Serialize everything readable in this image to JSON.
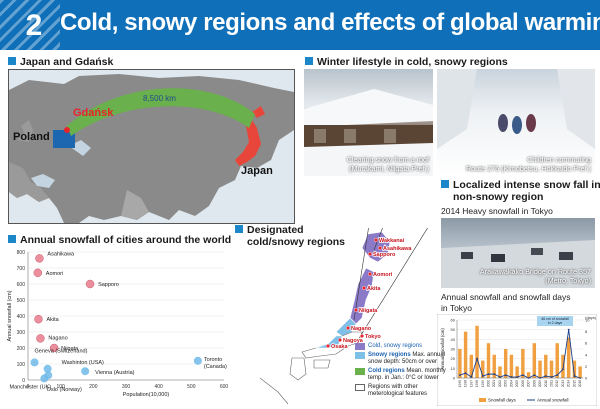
{
  "header": {
    "number": "2",
    "title": "Cold, snowy regions and effects of global warming in Japan"
  },
  "section_map": {
    "title": "Japan and Gdańsk",
    "labels": {
      "poland": "Poland",
      "gdansk": "Gdańsk",
      "japan": "Japan",
      "distance": "8,500 km"
    }
  },
  "section_lifestyle": {
    "title": "Winter lifestyle in cold, snowy regions",
    "photo1_caption_line1": "Clearing snow from a roof",
    "photo1_caption_line2": "(Murakami, Niigata Pref.)",
    "photo2_caption_line1": "Children commuting",
    "photo2_caption_line2": "Route 276 (Kimobetsu, Hokkaido Pref.)"
  },
  "section_localized": {
    "title_line1": "Localized intense snow fall in a",
    "title_line2": "non-snowy region",
    "subtitle": "2014 Heavy snowfall in Tokyo",
    "photo_caption_line1": "Arakawakako Bridge on Route 357",
    "photo_caption_line2": "(Metro, Tokyo)",
    "chart_title_line1": "Annual snowfall and snowfall days",
    "chart_title_line2": "in Tokyo"
  },
  "section_designated": {
    "title_line1": "Designated",
    "title_line2": "cold/snowy regions",
    "cities": [
      {
        "name": "Wakkanai"
      },
      {
        "name": "Asahikawa"
      },
      {
        "name": "Sapporo"
      },
      {
        "name": "Aomori"
      },
      {
        "name": "Akita"
      },
      {
        "name": "Niigata"
      },
      {
        "name": "Nagano"
      },
      {
        "name": "Tokyo"
      },
      {
        "name": "Nagoya"
      },
      {
        "name": "Osaka"
      }
    ],
    "legend": {
      "cold_snowy": "Cold, snowy regions",
      "snowy_line1": "Snowy regions",
      "snowy_line2": "Max. annual",
      "snowy_line3": "snow depth: 50cm or over",
      "cold_line1": "Cold regions",
      "cold_line2": "Mean. monthly",
      "cold_line3": "temp. in Jan.: 0°C or lower",
      "other_line1": "Regions with other",
      "other_line2": "meterological features"
    }
  },
  "chart_data": [
    {
      "type": "scatter",
      "title": "Annual snowfall of cities around the world",
      "xlabel": "Population(10,000)",
      "ylabel": "Annual snowfall (cm)",
      "xlim": [
        0,
        600
      ],
      "ylim": [
        0,
        800
      ],
      "xticks": [
        0,
        100,
        200,
        300,
        400,
        500,
        600
      ],
      "yticks": [
        0,
        100,
        200,
        300,
        400,
        500,
        600,
        700,
        800
      ],
      "points": [
        {
          "name": "Asahikawa",
          "x": 35,
          "y": 760,
          "color": "#e87a8c"
        },
        {
          "name": "Aomori",
          "x": 30,
          "y": 670,
          "color": "#e87a8c"
        },
        {
          "name": "Sapporo",
          "x": 190,
          "y": 600,
          "color": "#e87a8c"
        },
        {
          "name": "Akita",
          "x": 32,
          "y": 380,
          "color": "#e87a8c"
        },
        {
          "name": "Nagano",
          "x": 38,
          "y": 260,
          "color": "#e87a8c"
        },
        {
          "name": "Niigata",
          "x": 80,
          "y": 200,
          "color": "#e87a8c"
        },
        {
          "name": "Geneva (Switzerland)",
          "x": 20,
          "y": 110,
          "color": "#6fb8e8"
        },
        {
          "name": "Washinton (USA)",
          "x": 60,
          "y": 70,
          "color": "#6fb8e8"
        },
        {
          "name": "Vienna (Austria)",
          "x": 175,
          "y": 55,
          "color": "#6fb8e8"
        },
        {
          "name": "Toronto (Canada)",
          "x": 520,
          "y": 120,
          "color": "#6fb8e8"
        },
        {
          "name": "Manchester (UK)",
          "x": 50,
          "y": 10,
          "color": "#6fb8e8"
        },
        {
          "name": "Oslo (Norway)",
          "x": 62,
          "y": 30,
          "color": "#6fb8e8"
        }
      ]
    },
    {
      "type": "bar",
      "title": "Annual snowfall and snowfall days in Tokyo",
      "ylabel": "Annual snowfall (cm)",
      "y2label": "(days)",
      "annotation": "46 cm of snowfall in 2 days",
      "categories": [
        "1995",
        "1996",
        "1997",
        "1998",
        "1999",
        "2000",
        "2001",
        "2002",
        "2003",
        "2004",
        "2005",
        "2006",
        "2007",
        "2008",
        "2009",
        "2010",
        "2011",
        "2012",
        "2013",
        "2014",
        "2015",
        "2016"
      ],
      "series": [
        {
          "name": "Snowfall days",
          "type": "bar",
          "values": [
            5,
            8,
            4,
            9,
            3,
            6,
            4,
            2,
            5,
            4,
            2,
            5,
            1,
            6,
            3,
            4,
            3,
            6,
            4,
            7,
            3,
            2
          ]
        },
        {
          "name": "Annual snowfall",
          "type": "line",
          "values": [
            3,
            5,
            1,
            20,
            2,
            4,
            4,
            1,
            3,
            1,
            1,
            3,
            0,
            3,
            0,
            2,
            1,
            3,
            9,
            50,
            2,
            0
          ]
        }
      ],
      "ylim": [
        0,
        60
      ],
      "y2lim": [
        0,
        10
      ]
    }
  ]
}
